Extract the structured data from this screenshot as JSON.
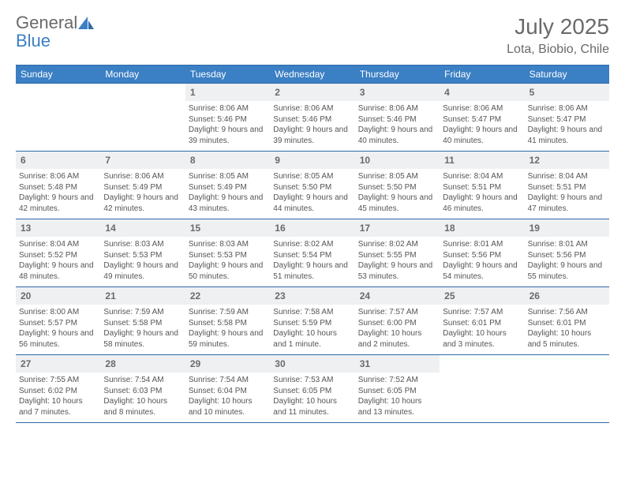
{
  "brand": {
    "part1": "General",
    "part2": "Blue"
  },
  "title": "July 2025",
  "location": "Lota, Biobio, Chile",
  "colors": {
    "header_bg": "#3b7fc4",
    "header_text": "#ffffff",
    "border": "#2f6aa8",
    "daynum_bg": "#eef0f2",
    "text_muted": "#6a6a6a",
    "body_text": "#555555"
  },
  "days_of_week": [
    "Sunday",
    "Monday",
    "Tuesday",
    "Wednesday",
    "Thursday",
    "Friday",
    "Saturday"
  ],
  "weeks": [
    [
      null,
      null,
      {
        "n": "1",
        "sr": "8:06 AM",
        "ss": "5:46 PM",
        "dl": "9 hours and 39 minutes."
      },
      {
        "n": "2",
        "sr": "8:06 AM",
        "ss": "5:46 PM",
        "dl": "9 hours and 39 minutes."
      },
      {
        "n": "3",
        "sr": "8:06 AM",
        "ss": "5:46 PM",
        "dl": "9 hours and 40 minutes."
      },
      {
        "n": "4",
        "sr": "8:06 AM",
        "ss": "5:47 PM",
        "dl": "9 hours and 40 minutes."
      },
      {
        "n": "5",
        "sr": "8:06 AM",
        "ss": "5:47 PM",
        "dl": "9 hours and 41 minutes."
      }
    ],
    [
      {
        "n": "6",
        "sr": "8:06 AM",
        "ss": "5:48 PM",
        "dl": "9 hours and 42 minutes."
      },
      {
        "n": "7",
        "sr": "8:06 AM",
        "ss": "5:49 PM",
        "dl": "9 hours and 42 minutes."
      },
      {
        "n": "8",
        "sr": "8:05 AM",
        "ss": "5:49 PM",
        "dl": "9 hours and 43 minutes."
      },
      {
        "n": "9",
        "sr": "8:05 AM",
        "ss": "5:50 PM",
        "dl": "9 hours and 44 minutes."
      },
      {
        "n": "10",
        "sr": "8:05 AM",
        "ss": "5:50 PM",
        "dl": "9 hours and 45 minutes."
      },
      {
        "n": "11",
        "sr": "8:04 AM",
        "ss": "5:51 PM",
        "dl": "9 hours and 46 minutes."
      },
      {
        "n": "12",
        "sr": "8:04 AM",
        "ss": "5:51 PM",
        "dl": "9 hours and 47 minutes."
      }
    ],
    [
      {
        "n": "13",
        "sr": "8:04 AM",
        "ss": "5:52 PM",
        "dl": "9 hours and 48 minutes."
      },
      {
        "n": "14",
        "sr": "8:03 AM",
        "ss": "5:53 PM",
        "dl": "9 hours and 49 minutes."
      },
      {
        "n": "15",
        "sr": "8:03 AM",
        "ss": "5:53 PM",
        "dl": "9 hours and 50 minutes."
      },
      {
        "n": "16",
        "sr": "8:02 AM",
        "ss": "5:54 PM",
        "dl": "9 hours and 51 minutes."
      },
      {
        "n": "17",
        "sr": "8:02 AM",
        "ss": "5:55 PM",
        "dl": "9 hours and 53 minutes."
      },
      {
        "n": "18",
        "sr": "8:01 AM",
        "ss": "5:56 PM",
        "dl": "9 hours and 54 minutes."
      },
      {
        "n": "19",
        "sr": "8:01 AM",
        "ss": "5:56 PM",
        "dl": "9 hours and 55 minutes."
      }
    ],
    [
      {
        "n": "20",
        "sr": "8:00 AM",
        "ss": "5:57 PM",
        "dl": "9 hours and 56 minutes."
      },
      {
        "n": "21",
        "sr": "7:59 AM",
        "ss": "5:58 PM",
        "dl": "9 hours and 58 minutes."
      },
      {
        "n": "22",
        "sr": "7:59 AM",
        "ss": "5:58 PM",
        "dl": "9 hours and 59 minutes."
      },
      {
        "n": "23",
        "sr": "7:58 AM",
        "ss": "5:59 PM",
        "dl": "10 hours and 1 minute."
      },
      {
        "n": "24",
        "sr": "7:57 AM",
        "ss": "6:00 PM",
        "dl": "10 hours and 2 minutes."
      },
      {
        "n": "25",
        "sr": "7:57 AM",
        "ss": "6:01 PM",
        "dl": "10 hours and 3 minutes."
      },
      {
        "n": "26",
        "sr": "7:56 AM",
        "ss": "6:01 PM",
        "dl": "10 hours and 5 minutes."
      }
    ],
    [
      {
        "n": "27",
        "sr": "7:55 AM",
        "ss": "6:02 PM",
        "dl": "10 hours and 7 minutes."
      },
      {
        "n": "28",
        "sr": "7:54 AM",
        "ss": "6:03 PM",
        "dl": "10 hours and 8 minutes."
      },
      {
        "n": "29",
        "sr": "7:54 AM",
        "ss": "6:04 PM",
        "dl": "10 hours and 10 minutes."
      },
      {
        "n": "30",
        "sr": "7:53 AM",
        "ss": "6:05 PM",
        "dl": "10 hours and 11 minutes."
      },
      {
        "n": "31",
        "sr": "7:52 AM",
        "ss": "6:05 PM",
        "dl": "10 hours and 13 minutes."
      },
      null,
      null
    ]
  ],
  "labels": {
    "sunrise": "Sunrise:",
    "sunset": "Sunset:",
    "daylight": "Daylight:"
  }
}
